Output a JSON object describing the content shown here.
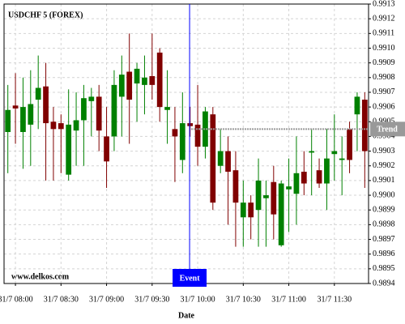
{
  "chart_data": {
    "type": "candlestick",
    "title": "USDCHF 5 (FOREX)",
    "xlabel": "Date",
    "watermark": "www.delkos.com",
    "categories": [
      null,
      "31/7 08:00",
      null,
      null,
      null,
      null,
      null,
      "31/7 08:30",
      null,
      null,
      null,
      null,
      null,
      "31/7 09:00",
      null,
      null,
      null,
      null,
      null,
      "31/7 09:30",
      null,
      null,
      null,
      null,
      null,
      "31/7 10:00",
      null,
      null,
      null,
      null,
      null,
      "31/7 10:30",
      null,
      null,
      null,
      null,
      null,
      "31/7 11:00",
      null,
      null,
      null,
      null,
      null,
      "31/7 11:30",
      null,
      null,
      null,
      null
    ],
    "open": [
      0.99043,
      0.99061,
      0.99043,
      0.99048,
      0.99065,
      0.99074,
      0.9905,
      0.99049,
      0.99014,
      0.99044,
      0.99051,
      0.99064,
      0.99067,
      0.9904,
      0.9904,
      0.99067,
      0.99084,
      0.99076,
      0.99075,
      0.99081,
      0.99097,
      0.99058,
      0.99045,
      0.99024,
      0.99049,
      0.99048,
      0.99033,
      0.99055,
      0.9902,
      0.9903,
      0.99017,
      0.98985,
      0.98995,
      0.9899,
      0.98998,
      0.99009,
      0.98966,
      0.99004,
      0.99001,
      0.99016,
      0.99029,
      0.99017,
      0.99008,
      0.99028,
      0.99024,
      0.99045,
      0.99055,
      0.99065
    ],
    "high": [
      0.99075,
      0.99083,
      0.9908,
      0.99085,
      0.99095,
      0.9909,
      0.9906,
      0.99055,
      0.99072,
      0.9907,
      0.99075,
      0.99073,
      0.99075,
      0.9906,
      0.99085,
      0.99095,
      0.9911,
      0.9909,
      0.99095,
      0.9911,
      0.991,
      0.99085,
      0.9906,
      0.9907,
      0.9906,
      0.99075,
      0.9906,
      0.9906,
      0.99045,
      0.9904,
      0.9903,
      0.9901,
      0.99,
      0.99025,
      0.9901,
      0.9902,
      0.9901,
      0.99025,
      0.9904,
      0.9903,
      0.99045,
      0.99025,
      0.99045,
      0.99055,
      0.9904,
      0.9905,
      0.9907,
      0.9907
    ],
    "low": [
      0.99015,
      0.99035,
      0.99018,
      0.9902,
      0.99045,
      0.9901,
      0.9901,
      0.99015,
      0.9901,
      0.9902,
      0.9902,
      0.9904,
      0.9903,
      0.99005,
      0.9903,
      0.9904,
      0.99035,
      0.9905,
      0.99055,
      0.99065,
      0.9905,
      0.99035,
      0.99009,
      0.99015,
      0.9904,
      0.9902,
      0.99025,
      0.9899,
      0.99015,
      0.9898,
      0.98965,
      0.98965,
      0.9897,
      0.98965,
      0.98965,
      0.9897,
      0.98965,
      0.98975,
      0.9898,
      0.99,
      0.99,
      0.99005,
      0.9899,
      0.9901,
      0.99,
      0.99015,
      0.9903,
      0.99005
    ],
    "close": [
      0.99058,
      0.99059,
      0.9906,
      0.99062,
      0.99073,
      0.99049,
      0.99045,
      0.99045,
      0.99048,
      0.99051,
      0.99066,
      0.99067,
      0.99044,
      0.99023,
      0.99075,
      0.99082,
      0.99065,
      0.99086,
      0.9908,
      0.99075,
      0.9906,
      0.9906,
      0.9904,
      0.99049,
      0.99047,
      0.99033,
      0.99057,
      0.98995,
      0.9903,
      0.99016,
      0.98995,
      0.98995,
      0.98985,
      0.9901,
      0.99,
      0.98987,
      0.99008,
      0.99006,
      0.99015,
      0.99008,
      0.9903,
      0.99008,
      0.99025,
      0.9903,
      0.99025,
      0.99024,
      0.99067,
      0.9903
    ],
    "up_color": "#008000",
    "down_color": "#800000",
    "ylim": [
      0.9894,
      0.9913
    ],
    "yticks": [
      0.9894,
      0.9895,
      0.9896,
      0.9897,
      0.9898,
      0.9899,
      {
        "value": 0.99,
        "label": "0.9900"
      },
      0.9901,
      0.9902,
      0.9903,
      0.9904,
      0.9905,
      0.9906,
      0.9907,
      0.9908,
      0.9909,
      {
        "value": 0.991,
        "label": "0.9910"
      },
      0.9911,
      0.9912,
      0.9913
    ],
    "grid": true,
    "event": {
      "label": "Event",
      "x": "31/7 10:00",
      "color": "#0000ff"
    },
    "trend": {
      "label": "Trend",
      "value": 0.99045,
      "color": "#999999"
    }
  }
}
